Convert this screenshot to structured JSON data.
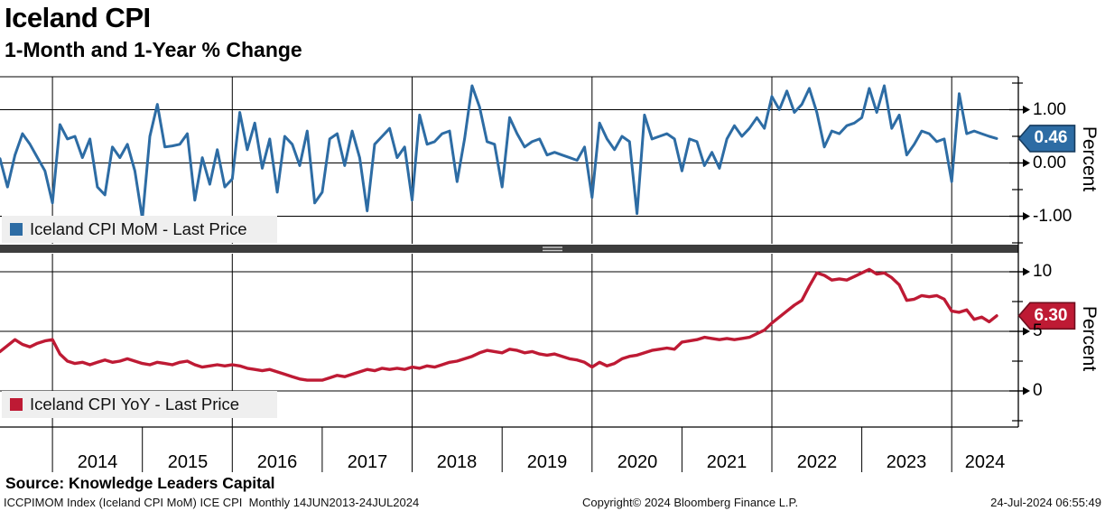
{
  "header": {
    "title": "Iceland CPI",
    "subtitle": "1-Month and 1-Year % Change"
  },
  "x_axis": {
    "start": "2013-06",
    "end": "2024-07",
    "frequency": "monthly",
    "tick_years": [
      2014,
      2015,
      2016,
      2017,
      2018,
      2019,
      2020,
      2021,
      2022,
      2023,
      2024
    ],
    "year_labels": [
      "2014",
      "2015",
      "2016",
      "2017",
      "2018",
      "2019",
      "2020",
      "2021",
      "2022",
      "2023",
      "2024"
    ],
    "gridline_years": [
      2014,
      2016,
      2018,
      2020,
      2022,
      2024
    ]
  },
  "chart_data": [
    {
      "type": "line",
      "title": "Iceland CPI MoM - Last Price",
      "ylabel": "Percent",
      "color": "#2d6ca4",
      "badge_border": "#163b5e",
      "ylim": [
        -1.55,
        1.62
      ],
      "yticks": [
        {
          "label": "1.00",
          "value": 1.0
        },
        {
          "label": "0.00",
          "value": 0.0
        },
        {
          "label": "-1.00",
          "value": -1.0
        }
      ],
      "last_price_label": "0.46",
      "last_price_value": 0.46,
      "x_start": "2013-06",
      "x_end": "2024-07",
      "values": [
        0.08,
        -0.45,
        0.15,
        0.55,
        0.35,
        0.1,
        -0.15,
        -0.75,
        0.72,
        0.45,
        0.5,
        0.1,
        0.45,
        -0.45,
        -0.6,
        0.3,
        0.1,
        0.35,
        -0.15,
        -1.05,
        0.5,
        1.1,
        0.3,
        0.32,
        0.35,
        0.55,
        -0.7,
        0.1,
        -0.4,
        0.25,
        -0.45,
        -0.3,
        0.95,
        0.25,
        0.75,
        -0.1,
        0.45,
        -0.55,
        0.5,
        0.35,
        -0.05,
        0.6,
        -0.75,
        -0.55,
        0.45,
        0.55,
        -0.05,
        0.6,
        0.1,
        -0.9,
        0.35,
        0.5,
        0.65,
        0.1,
        0.3,
        -0.7,
        0.9,
        0.35,
        0.4,
        0.55,
        0.6,
        -0.35,
        0.45,
        1.45,
        1.05,
        0.4,
        0.35,
        -0.45,
        0.85,
        0.55,
        0.3,
        0.4,
        0.45,
        0.15,
        0.2,
        0.15,
        0.1,
        0.05,
        0.3,
        -0.65,
        0.75,
        0.45,
        0.25,
        0.5,
        0.4,
        -0.95,
        0.9,
        0.45,
        0.5,
        0.55,
        0.45,
        -0.15,
        0.45,
        0.4,
        -0.05,
        0.2,
        -0.1,
        0.45,
        0.7,
        0.5,
        0.65,
        0.85,
        0.65,
        1.25,
        1.0,
        1.35,
        0.95,
        1.1,
        1.4,
        0.95,
        0.3,
        0.6,
        0.55,
        0.7,
        0.75,
        0.85,
        1.4,
        0.95,
        1.45,
        0.65,
        0.9,
        0.15,
        0.35,
        0.6,
        0.55,
        0.4,
        0.45,
        -0.35,
        1.3,
        0.55,
        0.6,
        0.55,
        0.5,
        0.46
      ]
    },
    {
      "type": "line",
      "title": "Iceland CPI YoY - Last Price",
      "ylabel": "Percent",
      "color": "#be1a34",
      "badge_border": "#6e0e1e",
      "ylim": [
        -3.0,
        11.5
      ],
      "yticks": [
        {
          "label": "10",
          "value": 10
        },
        {
          "label": "5",
          "value": 5
        },
        {
          "label": "0",
          "value": 0
        }
      ],
      "last_price_label": "6.30",
      "last_price_value": 6.3,
      "x_start": "2013-06",
      "x_end": "2024-07",
      "values": [
        3.3,
        3.8,
        4.3,
        3.9,
        3.7,
        4.0,
        4.2,
        4.3,
        3.1,
        2.5,
        2.3,
        2.4,
        2.2,
        2.4,
        2.6,
        2.4,
        2.5,
        2.7,
        2.5,
        2.3,
        2.2,
        2.4,
        2.3,
        2.2,
        2.4,
        2.5,
        2.2,
        2.0,
        2.1,
        2.2,
        2.1,
        2.2,
        2.1,
        1.9,
        1.8,
        1.7,
        1.8,
        1.6,
        1.4,
        1.2,
        1.0,
        0.9,
        0.9,
        0.9,
        1.1,
        1.3,
        1.2,
        1.4,
        1.6,
        1.8,
        1.7,
        1.9,
        1.8,
        1.9,
        1.8,
        2.0,
        1.9,
        2.1,
        2.0,
        2.2,
        2.4,
        2.5,
        2.7,
        2.9,
        3.2,
        3.4,
        3.3,
        3.2,
        3.5,
        3.4,
        3.2,
        3.3,
        3.1,
        3.0,
        3.1,
        2.9,
        2.7,
        2.6,
        2.4,
        2.0,
        2.4,
        2.1,
        2.3,
        2.7,
        2.9,
        3.0,
        3.2,
        3.4,
        3.5,
        3.6,
        3.5,
        4.1,
        4.2,
        4.3,
        4.5,
        4.4,
        4.3,
        4.4,
        4.3,
        4.4,
        4.5,
        4.8,
        5.1,
        5.7,
        6.2,
        6.7,
        7.2,
        7.6,
        8.8,
        9.9,
        9.7,
        9.3,
        9.4,
        9.3,
        9.6,
        9.9,
        10.2,
        9.8,
        9.9,
        9.5,
        8.9,
        7.6,
        7.7,
        8.0,
        7.9,
        8.0,
        7.7,
        6.7,
        6.6,
        6.8,
        6.0,
        6.2,
        5.8,
        6.3
      ]
    }
  ],
  "source": "Source: Knowledge Leaders Capital",
  "footer": {
    "left": "ICCPIMOM Index (Iceland CPI MoM) ICE CPI  Monthly 14JUN2013-24JUL2024",
    "center": "Copyright© 2024 Bloomberg Finance L.P.",
    "right": "24-Jul-2024 06:55:49"
  },
  "colors": {
    "grid": "#000000",
    "separator": "#3d3d3d",
    "legend_bg": "#efefef"
  }
}
